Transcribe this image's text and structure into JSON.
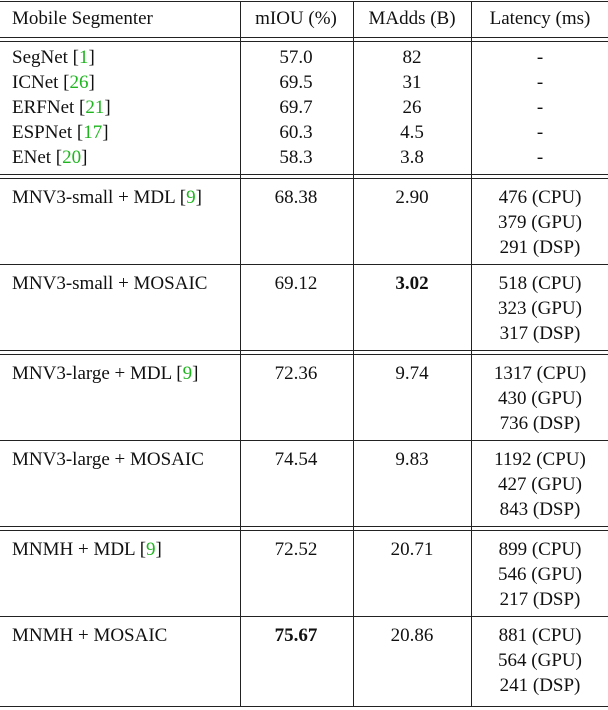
{
  "table": {
    "header": [
      "Mobile Segmenter",
      "mIOU (%)",
      "MAdds (B)",
      "Latency (ms)"
    ],
    "sections": [
      {
        "rows": [
          {
            "model": [
              "SegNet [",
              "1",
              "]"
            ],
            "miou": "57.0",
            "madds": "82",
            "latency": [
              "-"
            ]
          },
          {
            "model": [
              "ICNet [",
              "26",
              "]"
            ],
            "miou": "69.5",
            "madds": "31",
            "latency": [
              "-"
            ]
          },
          {
            "model": [
              "ERFNet [",
              "21",
              "]"
            ],
            "miou": "69.7",
            "madds": "26",
            "latency": [
              "-"
            ]
          },
          {
            "model": [
              "ESPNet [",
              "17",
              "]"
            ],
            "miou": "60.3",
            "madds": "4.5",
            "latency": [
              "-"
            ]
          },
          {
            "model": [
              "ENet [",
              "20",
              "]"
            ],
            "miou": "58.3",
            "madds": "3.8",
            "latency": [
              "-"
            ]
          }
        ]
      },
      {
        "rows": [
          {
            "model": [
              "MNV3-small + MDL [",
              "9",
              "]"
            ],
            "miou": "68.38",
            "madds": "2.90",
            "latency": [
              "476 (CPU)",
              "379 (GPU)",
              "291 (DSP)"
            ]
          },
          {
            "model": [
              "MNV3-small + MOSAIC"
            ],
            "miou": "69.12",
            "madds": "3.02",
            "bold": "madds",
            "latency": [
              "518 (CPU)",
              "323 (GPU)",
              "317 (DSP)"
            ]
          }
        ]
      },
      {
        "rows": [
          {
            "model": [
              "MNV3-large + MDL [",
              "9",
              "]"
            ],
            "miou": "72.36",
            "madds": "9.74",
            "latency": [
              "1317 (CPU)",
              "430 (GPU)",
              "736 (DSP)"
            ]
          },
          {
            "model": [
              "MNV3-large + MOSAIC"
            ],
            "miou": "74.54",
            "madds": "9.83",
            "latency": [
              "1192 (CPU)",
              "427 (GPU)",
              "843 (DSP)"
            ]
          }
        ]
      },
      {
        "rows": [
          {
            "model": [
              "MNMH + MDL [",
              "9",
              "]"
            ],
            "miou": "72.52",
            "madds": "20.71",
            "latency": [
              "899 (CPU)",
              "546 (GPU)",
              "217 (DSP)"
            ]
          },
          {
            "model": [
              "MNMH + MOSAIC"
            ],
            "miou": "75.67",
            "bold": "miou",
            "madds": "20.86",
            "latency": [
              "881 (CPU)",
              "564 (GPU)",
              "241 (DSP)"
            ]
          }
        ]
      }
    ]
  }
}
